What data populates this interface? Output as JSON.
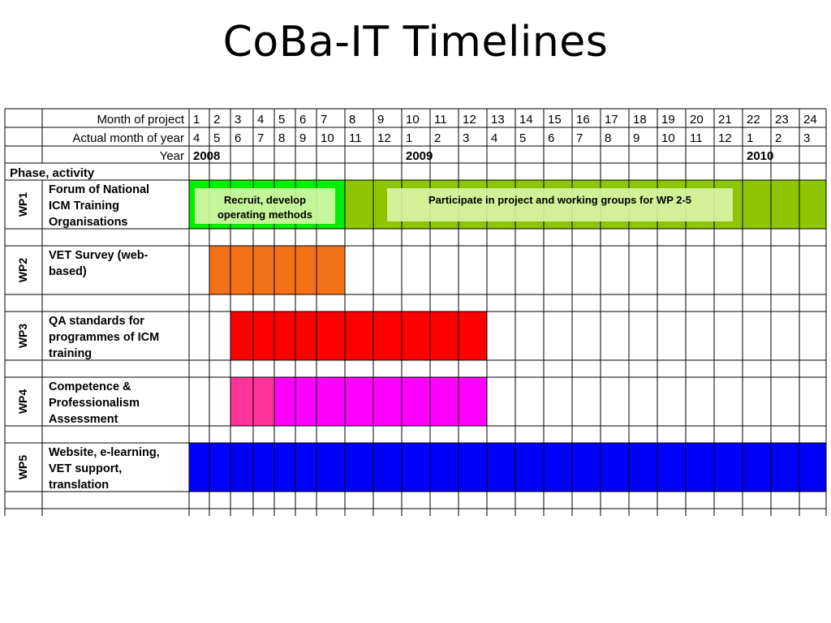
{
  "slide": {
    "title": "CoBa-IT Timelines"
  },
  "table": {
    "header_labels": {
      "month_of_project": "Month of project",
      "actual_month": "Actual month of year",
      "year": "Year",
      "phase": "Phase, activity"
    },
    "months_of_project": [
      "1",
      "2",
      "3",
      "4",
      "5",
      "6",
      "7",
      "8",
      "9",
      "10",
      "11",
      "12",
      "13",
      "14",
      "15",
      "16",
      "17",
      "18",
      "19",
      "20",
      "21",
      "22",
      "23",
      "24"
    ],
    "actual_months": [
      "4",
      "5",
      "6",
      "7",
      "8",
      "9",
      "10",
      "11",
      "12",
      "1",
      "2",
      "3",
      "4",
      "5",
      "6",
      "7",
      "8",
      "9",
      "10",
      "11",
      "12",
      "1",
      "2",
      "3"
    ],
    "years": [
      {
        "label": "2008",
        "start_month": 1
      },
      {
        "label": "2009",
        "start_month": 10
      },
      {
        "label": "2010",
        "start_month": 22
      }
    ],
    "work_packages": [
      {
        "id": "WP1",
        "lines": [
          "Forum of National",
          "ICM Training",
          "Organisations"
        ],
        "bars": [
          {
            "from": 1,
            "to": 7,
            "color": "#00ee00"
          },
          {
            "from": 8,
            "to": 24,
            "color": "#8fc400"
          }
        ],
        "notes": [
          {
            "lines": [
              "Recruit, develop",
              "operating methods"
            ],
            "from": 1,
            "to": 7
          },
          {
            "lines": [
              "Participate in project and working groups for WP 2-5"
            ],
            "from": 9,
            "to": 21
          }
        ]
      },
      {
        "id": "WP2",
        "lines": [
          "VET Survey (web-",
          "based)"
        ],
        "bars": [
          {
            "from": 2,
            "to": 7,
            "color": "#f47216"
          }
        ],
        "notes": []
      },
      {
        "id": "WP3",
        "lines": [
          "QA standards for",
          "programmes of ICM",
          "training"
        ],
        "bars": [
          {
            "from": 3,
            "to": 12,
            "color": "#ff0000"
          }
        ],
        "notes": []
      },
      {
        "id": "WP4",
        "lines": [
          "Competence &",
          "Professionalism",
          "Assessment"
        ],
        "bars": [
          {
            "from": 3,
            "to": 4,
            "color": "#ff3399"
          },
          {
            "from": 5,
            "to": 12,
            "color": "#ff00ff"
          }
        ],
        "notes": []
      },
      {
        "id": "WP5",
        "lines": [
          "Website, e-learning,",
          "VET support,",
          "translation"
        ],
        "bars": [
          {
            "from": 1,
            "to": 24,
            "color": "#0000ff"
          }
        ],
        "notes": []
      }
    ]
  }
}
